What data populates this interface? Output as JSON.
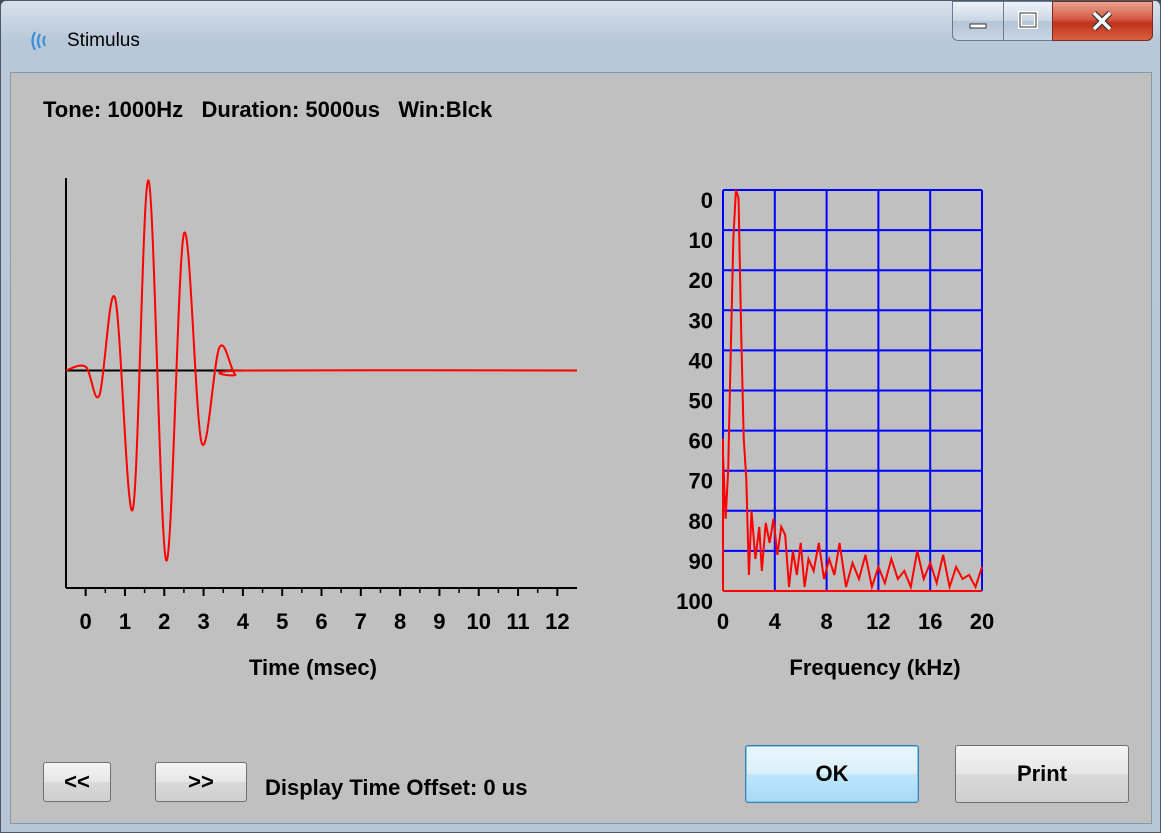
{
  "window": {
    "title": "Stimulus",
    "accent": "#3a7bd5"
  },
  "info_line": "Tone: 1000Hz   Duration: 5000us   Win:Blck",
  "chart_data": [
    {
      "type": "line",
      "xlabel": "Time (msec)",
      "ylabel": "",
      "xlim": [
        -0.5,
        12.5
      ],
      "ylim": [
        -1,
        1
      ],
      "x_ticks": [
        0,
        1,
        2,
        3,
        4,
        5,
        6,
        7,
        8,
        9,
        10,
        11,
        12
      ],
      "tick_labels": [
        "0",
        "1",
        "2",
        "3",
        "4",
        "5",
        "6",
        "7",
        "8",
        "9",
        "10",
        "11",
        "12"
      ],
      "series": [
        {
          "color": "#ff0000",
          "x": [
            -0.5,
            0,
            0.35,
            0.75,
            1.2,
            1.6,
            2.05,
            2.5,
            2.95,
            3.4,
            3.8,
            4.1,
            12.5
          ],
          "y": [
            0,
            0.02,
            -0.13,
            0.38,
            -0.73,
            1.0,
            -1.0,
            0.72,
            -0.38,
            0.12,
            -0.02,
            0,
            0
          ]
        }
      ],
      "baseline": {
        "color": "#000000",
        "x_range": [
          -0.5,
          4.1
        ],
        "y": 0
      }
    },
    {
      "type": "line",
      "xlabel": "Frequency (kHz)",
      "ylabel": "",
      "xlim": [
        0,
        20
      ],
      "ylim": [
        0,
        100
      ],
      "y_inverted": true,
      "x_tick_labels": [
        "0",
        "4",
        "8",
        "12",
        "16",
        "20"
      ],
      "x_ticks": [
        0,
        4,
        8,
        12,
        16,
        20
      ],
      "y_tick_labels": [
        "0",
        "10",
        "20",
        "30",
        "40",
        "50",
        "60",
        "70",
        "80",
        "90",
        "100"
      ],
      "y_ticks": [
        0,
        10,
        20,
        30,
        40,
        50,
        60,
        70,
        80,
        90,
        100
      ],
      "grid": true,
      "grid_color": "#0000ff",
      "series": [
        {
          "color": "#ff0000",
          "x": [
            0,
            0.2,
            0.4,
            0.6,
            0.8,
            1.0,
            1.2,
            1.4,
            1.6,
            1.8,
            2.0,
            2.2,
            2.5,
            2.8,
            3.0,
            3.3,
            3.6,
            3.9,
            4.2,
            4.5,
            4.8,
            5.1,
            5.4,
            5.7,
            6.0,
            6.3,
            6.6,
            7.0,
            7.4,
            7.8,
            8.2,
            8.6,
            9.0,
            9.5,
            10.0,
            10.5,
            11.0,
            11.5,
            12.0,
            12.5,
            13.0,
            13.5,
            14.0,
            14.5,
            15.0,
            15.5,
            16.0,
            16.5,
            17.0,
            17.5,
            18.0,
            18.5,
            19.0,
            19.5,
            20.0
          ],
          "y": [
            66,
            82,
            70,
            40,
            12,
            0,
            2,
            35,
            62,
            72,
            96,
            80,
            92,
            84,
            95,
            83,
            88,
            82,
            91,
            84,
            86,
            99,
            90,
            96,
            88,
            99,
            92,
            95,
            88,
            97,
            92,
            96,
            88,
            99,
            93,
            97,
            91,
            99,
            94,
            98,
            92,
            97,
            95,
            99,
            90,
            97,
            93,
            98,
            91,
            99,
            94,
            97,
            96,
            99,
            94
          ]
        }
      ]
    }
  ],
  "buttons": {
    "prev": "<<",
    "next": ">>",
    "ok": "OK",
    "print": "Print"
  },
  "display_offset_label": "Display Time Offset: 0 us"
}
